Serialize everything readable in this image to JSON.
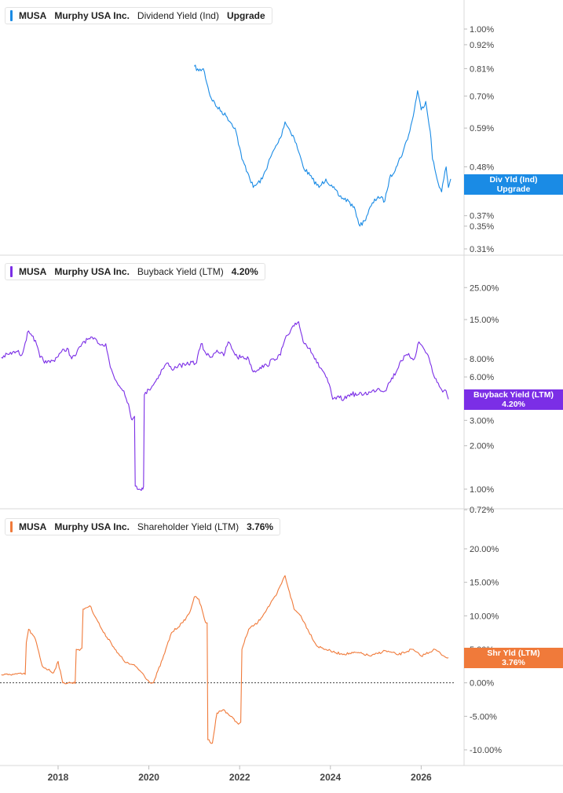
{
  "panels": [
    {
      "ticker": "MUSA",
      "company": "Murphy USA Inc.",
      "metric": "Dividend Yield (Ind)",
      "value": "Upgrade",
      "color": "#1a8be5",
      "tag_line1": "Div Yld (Ind)",
      "tag_line2": "Upgrade"
    },
    {
      "ticker": "MUSA",
      "company": "Murphy USA Inc.",
      "metric": "Buyback Yield (LTM)",
      "value": "4.20%",
      "color": "#7b2ee6",
      "tag_line1": "Buyback Yield (LTM)",
      "tag_line2": "4.20%"
    },
    {
      "ticker": "MUSA",
      "company": "Murphy USA Inc.",
      "metric": "Shareholder Yield (LTM)",
      "value": "3.76%",
      "color": "#f07a3a",
      "tag_line1": "Shr Yld (LTM)",
      "tag_line2": "3.76%"
    }
  ],
  "chart_data": [
    {
      "type": "line",
      "scale": "log",
      "series": [
        {
          "color": "#1a8be5",
          "x": [
            2021.0,
            2021.1,
            2021.2,
            2021.35,
            2021.5,
            2021.7,
            2021.9,
            2022.05,
            2022.2,
            2022.3,
            2022.5,
            2022.7,
            2022.9,
            2023.0,
            2023.2,
            2023.3,
            2023.4,
            2023.6,
            2023.75,
            2023.9,
            2024.05,
            2024.2,
            2024.4,
            2024.55,
            2024.65,
            2024.75,
            2024.9,
            2025.05,
            2025.2,
            2025.3,
            2025.45,
            2025.6,
            2025.75,
            2025.85,
            2025.92,
            2026.0,
            2026.1,
            2026.2,
            2026.25,
            2026.35,
            2026.45,
            2026.55,
            2026.6,
            2026.65
          ],
          "y": [
            0.82,
            0.8,
            0.81,
            0.7,
            0.66,
            0.63,
            0.59,
            0.5,
            0.46,
            0.43,
            0.45,
            0.51,
            0.56,
            0.61,
            0.56,
            0.52,
            0.48,
            0.45,
            0.43,
            0.45,
            0.43,
            0.41,
            0.4,
            0.38,
            0.35,
            0.36,
            0.39,
            0.41,
            0.4,
            0.45,
            0.48,
            0.52,
            0.58,
            0.65,
            0.72,
            0.65,
            0.68,
            0.58,
            0.5,
            0.45,
            0.42,
            0.48,
            0.43,
            0.45
          ]
        }
      ],
      "ticks": [
        "1.00%",
        "0.92%",
        "0.81%",
        "0.70%",
        "0.59%",
        "0.48%",
        "0.37%",
        "0.35%",
        "0.31%"
      ],
      "tick_values": [
        1.0,
        0.92,
        0.81,
        0.7,
        0.59,
        0.48,
        0.37,
        0.35,
        0.31
      ],
      "ylim": [
        0.3,
        1.1
      ]
    },
    {
      "type": "line",
      "scale": "log",
      "series": [
        {
          "color": "#7b2ee6",
          "x": [
            2016.75,
            2016.9,
            2017.1,
            2017.2,
            2017.35,
            2017.45,
            2017.6,
            2017.75,
            2017.9,
            2018.05,
            2018.2,
            2018.3,
            2018.4,
            2018.55,
            2018.7,
            2018.85,
            2018.95,
            2019.05,
            2019.15,
            2019.25,
            2019.35,
            2019.45,
            2019.55,
            2019.6,
            2019.65,
            2019.7,
            2019.8,
            2019.85,
            2019.9,
            2020.0,
            2020.15,
            2020.3,
            2020.4,
            2020.5,
            2020.65,
            2020.8,
            2020.95,
            2021.05,
            2021.15,
            2021.25,
            2021.35,
            2021.5,
            2021.65,
            2021.75,
            2021.85,
            2021.95,
            2022.05,
            2022.2,
            2022.3,
            2022.45,
            2022.6,
            2022.75,
            2022.9,
            2023.0,
            2023.1,
            2023.2,
            2023.3,
            2023.4,
            2023.55,
            2023.7,
            2023.85,
            2023.95,
            2024.05,
            2024.2,
            2024.3,
            2024.45,
            2024.6,
            2024.75,
            2024.9,
            2025.05,
            2025.2,
            2025.3,
            2025.45,
            2025.55,
            2025.7,
            2025.85,
            2025.95,
            2026.05,
            2026.15,
            2026.25,
            2026.35,
            2026.45,
            2026.55,
            2026.6
          ],
          "y": [
            8.2,
            8.6,
            9.0,
            8.5,
            12.5,
            11.5,
            8.2,
            7.5,
            7.8,
            8.8,
            9.5,
            8.0,
            8.6,
            10.5,
            11.0,
            10.8,
            10.0,
            10.2,
            7.0,
            5.8,
            5.2,
            4.8,
            3.9,
            3.2,
            3.1,
            1.05,
            1.0,
            1.02,
            4.5,
            4.9,
            5.6,
            6.8,
            7.5,
            6.8,
            7.2,
            7.2,
            7.6,
            7.5,
            10.2,
            8.8,
            8.2,
            9.2,
            8.4,
            10.5,
            9.2,
            8.2,
            8.3,
            8.0,
            6.5,
            7.0,
            7.2,
            8.0,
            8.5,
            11.0,
            12.0,
            13.5,
            14.5,
            10.5,
            9.5,
            7.5,
            6.5,
            5.5,
            4.2,
            4.3,
            4.2,
            4.6,
            4.5,
            4.6,
            4.7,
            5.0,
            4.8,
            5.5,
            6.5,
            7.8,
            8.5,
            8.0,
            10.5,
            9.5,
            8.5,
            6.5,
            5.5,
            4.9,
            4.8,
            4.2
          ]
        }
      ],
      "ticks": [
        "25.00%",
        "15.00%",
        "8.00%",
        "6.00%",
        "3.00%",
        "2.00%",
        "1.00%",
        "0.72%"
      ],
      "tick_values": [
        25,
        15,
        8,
        6,
        3,
        2,
        1,
        0.72
      ],
      "ylim": [
        0.72,
        32
      ]
    },
    {
      "type": "line",
      "scale": "linear",
      "series": [
        {
          "color": "#f07a3a",
          "x": [
            2016.75,
            2016.9,
            2017.0,
            2017.3,
            2017.35,
            2017.5,
            2017.65,
            2017.9,
            2018.0,
            2018.1,
            2018.3,
            2018.4,
            2018.55,
            2018.7,
            2018.85,
            2019.0,
            2019.15,
            2019.3,
            2019.5,
            2019.7,
            2019.85,
            2020.0,
            2020.1,
            2020.3,
            2020.5,
            2020.75,
            2020.9,
            2021.0,
            2021.1,
            2021.25,
            2021.3,
            2021.4,
            2021.5,
            2021.65,
            2021.8,
            2021.95,
            2022.05,
            2022.2,
            2022.4,
            2022.6,
            2022.8,
            2023.0,
            2023.1,
            2023.2,
            2023.35,
            2023.5,
            2023.7,
            2023.9,
            2024.1,
            2024.3,
            2024.6,
            2024.9,
            2025.2,
            2025.5,
            2025.8,
            2026.0,
            2026.3,
            2026.5,
            2026.6
          ],
          "y": [
            1.2,
            1.2,
            1.3,
            6.0,
            8.0,
            6.5,
            2.5,
            1.5,
            3.2,
            0.0,
            0.0,
            5.0,
            11.0,
            11.5,
            9.5,
            7.5,
            6.2,
            4.5,
            3.0,
            2.5,
            1.5,
            0.2,
            0.0,
            3.5,
            7.5,
            9.0,
            10.5,
            12.8,
            12.5,
            9.0,
            -8.5,
            -9.0,
            -4.5,
            -4.0,
            -5.0,
            -6.0,
            5.0,
            8.0,
            9.0,
            11.0,
            13.0,
            16.0,
            13.5,
            11.0,
            10.0,
            8.0,
            5.5,
            5.0,
            4.5,
            4.3,
            4.5,
            4.0,
            4.8,
            4.2,
            5.0,
            4.0,
            5.0,
            4.0,
            3.76
          ]
        }
      ],
      "ticks": [
        "20.00%",
        "15.00%",
        "10.00%",
        "5.00%",
        "0.00%",
        "-5.00%",
        "-10.00%"
      ],
      "tick_values": [
        20,
        15,
        10,
        5,
        0,
        -5,
        -10
      ],
      "ylim": [
        -12,
        22
      ]
    }
  ],
  "xaxis": {
    "ticks": [
      "2018",
      "2020",
      "2022",
      "2024",
      "2026"
    ],
    "tick_values": [
      2018,
      2020,
      2022,
      2024,
      2026
    ],
    "range": [
      2016.72,
      2026.72
    ]
  }
}
